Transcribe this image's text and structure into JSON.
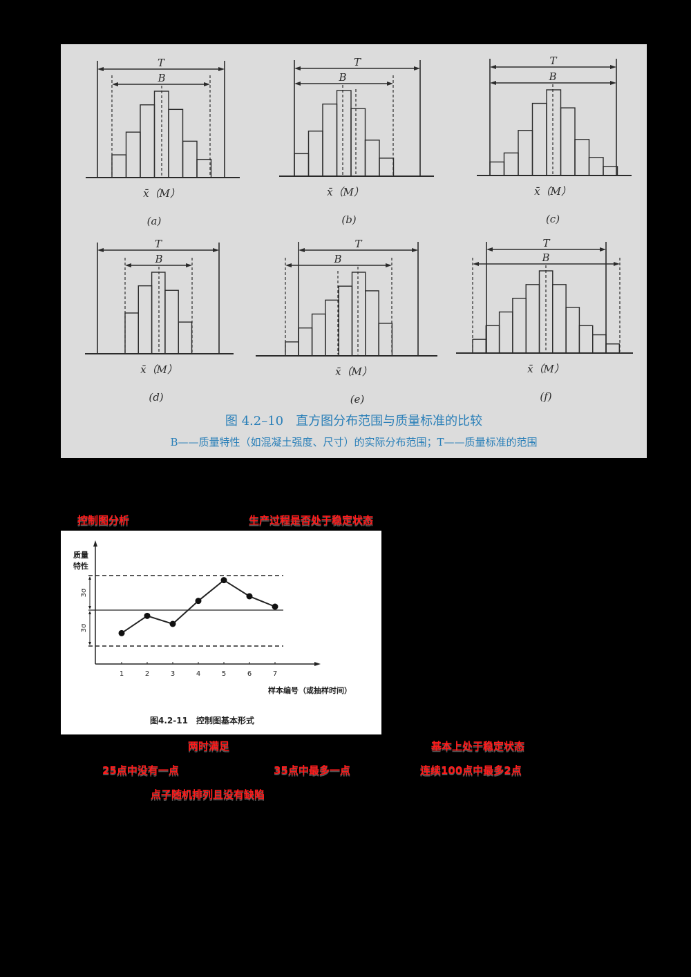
{
  "figure_hist": {
    "caption_title": "图 4.2–10　直方图分布范围与质量标准的比较",
    "caption_legend": "B——质量特性（如混凝土强度、尺寸）的实际分布范围；T——质量标准的范围",
    "T_label": "T",
    "B_label": "B",
    "axis_label": "x̄（M）",
    "panels": [
      {
        "id": "a",
        "label": "(a)"
      },
      {
        "id": "b",
        "label": "(b)"
      },
      {
        "id": "c",
        "label": "(c)"
      },
      {
        "id": "d",
        "label": "(d)"
      },
      {
        "id": "e",
        "label": "(e)"
      },
      {
        "id": "f",
        "label": "(f)"
      }
    ]
  },
  "figure_ctrl": {
    "ylabel_line1": "质量",
    "ylabel_line2": "特性",
    "sigma_upper": "3σ",
    "sigma_lower": "3σ",
    "xlabel": "样本编号（或抽样时间）",
    "caption": "图4.2-11　控制图基本形式",
    "x_ticks": [
      "1",
      "2",
      "3",
      "4",
      "5",
      "6",
      "7"
    ]
  },
  "annotations": {
    "ctrl_analysis": "控制图分析",
    "stable_question": "生产过程是否处于稳定状态",
    "points_in_limits": "两时满足",
    "basic_stable": "基本上处于稳定状态",
    "rule_25": "25点中没有一点",
    "rule_35": "35点中最多一点",
    "rule_100": "连续100点中最多2点",
    "random_pattern": "点子随机排列且没有缺陷"
  },
  "chart_data": [
    {
      "type": "bar",
      "title": "(a)",
      "values": [
        5,
        10,
        16,
        19,
        15,
        8,
        4
      ],
      "notes": "B centered within T, margins on both sides"
    },
    {
      "type": "bar",
      "title": "(b)",
      "values": [
        5,
        10,
        16,
        19,
        15,
        8,
        4
      ],
      "notes": "B shifted left; left edge touches T lower limit"
    },
    {
      "type": "bar",
      "title": "(c)",
      "values": [
        3,
        5,
        10,
        16,
        19,
        15,
        8,
        4,
        2
      ],
      "notes": "B equals T exactly"
    },
    {
      "type": "bar",
      "title": "(d)",
      "values": [
        9,
        15,
        18,
        14,
        7
      ],
      "notes": "B much narrower than T"
    },
    {
      "type": "bar",
      "title": "(e)",
      "values": [
        3,
        6,
        9,
        12,
        15,
        18,
        14,
        7
      ],
      "notes": "B shifted left beyond T lower limit"
    },
    {
      "type": "bar",
      "title": "(f)",
      "values": [
        3,
        6,
        9,
        12,
        15,
        18,
        15,
        10,
        6,
        4,
        2
      ],
      "notes": "B wider than T on both sides"
    },
    {
      "type": "line",
      "title": "图4.2-11 控制图基本形式",
      "xlabel": "样本编号（或抽样时间）",
      "ylabel": "质量特性",
      "x": [
        1,
        2,
        3,
        4,
        5,
        6,
        7
      ],
      "values": [
        -2.0,
        -0.5,
        -1.2,
        0.8,
        2.6,
        1.2,
        0.3
      ],
      "ucl": 3,
      "cl": 0,
      "lcl": -3,
      "ylim": [
        -4.5,
        4.5
      ]
    }
  ]
}
